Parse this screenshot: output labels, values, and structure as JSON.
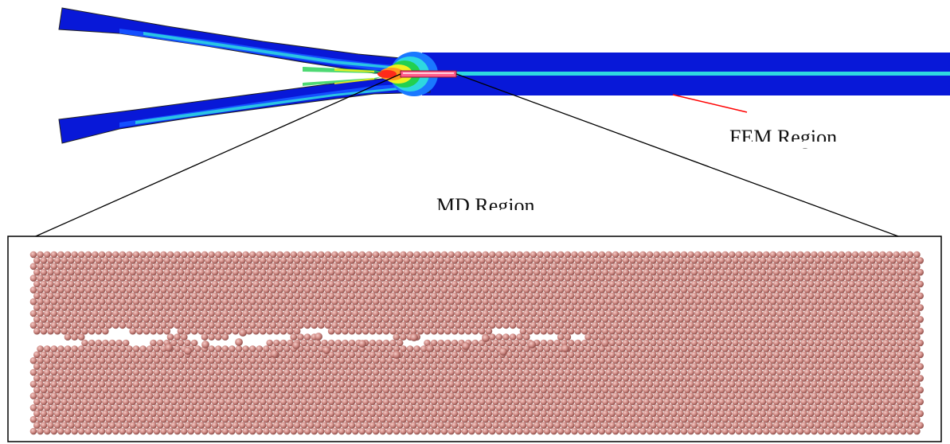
{
  "labels": {
    "fem_region": "FEM Region",
    "md_region": "MD Region"
  },
  "colors": {
    "fem_deep_blue": "#0818d8",
    "fem_mid_blue": "#1450ff",
    "fem_cyan": "#2ed8e0",
    "fem_green": "#22d050",
    "fem_yellow": "#f0f020",
    "fem_red": "#ff2a1a",
    "md_region_marker": "#ff5c8a",
    "pointer_line": "#ff0000",
    "atom": "#cf8a84",
    "atom_shadow": "#8e4e4a",
    "atom_highlight": "#f0c6c2",
    "bond_dot": "#2040c0"
  }
}
